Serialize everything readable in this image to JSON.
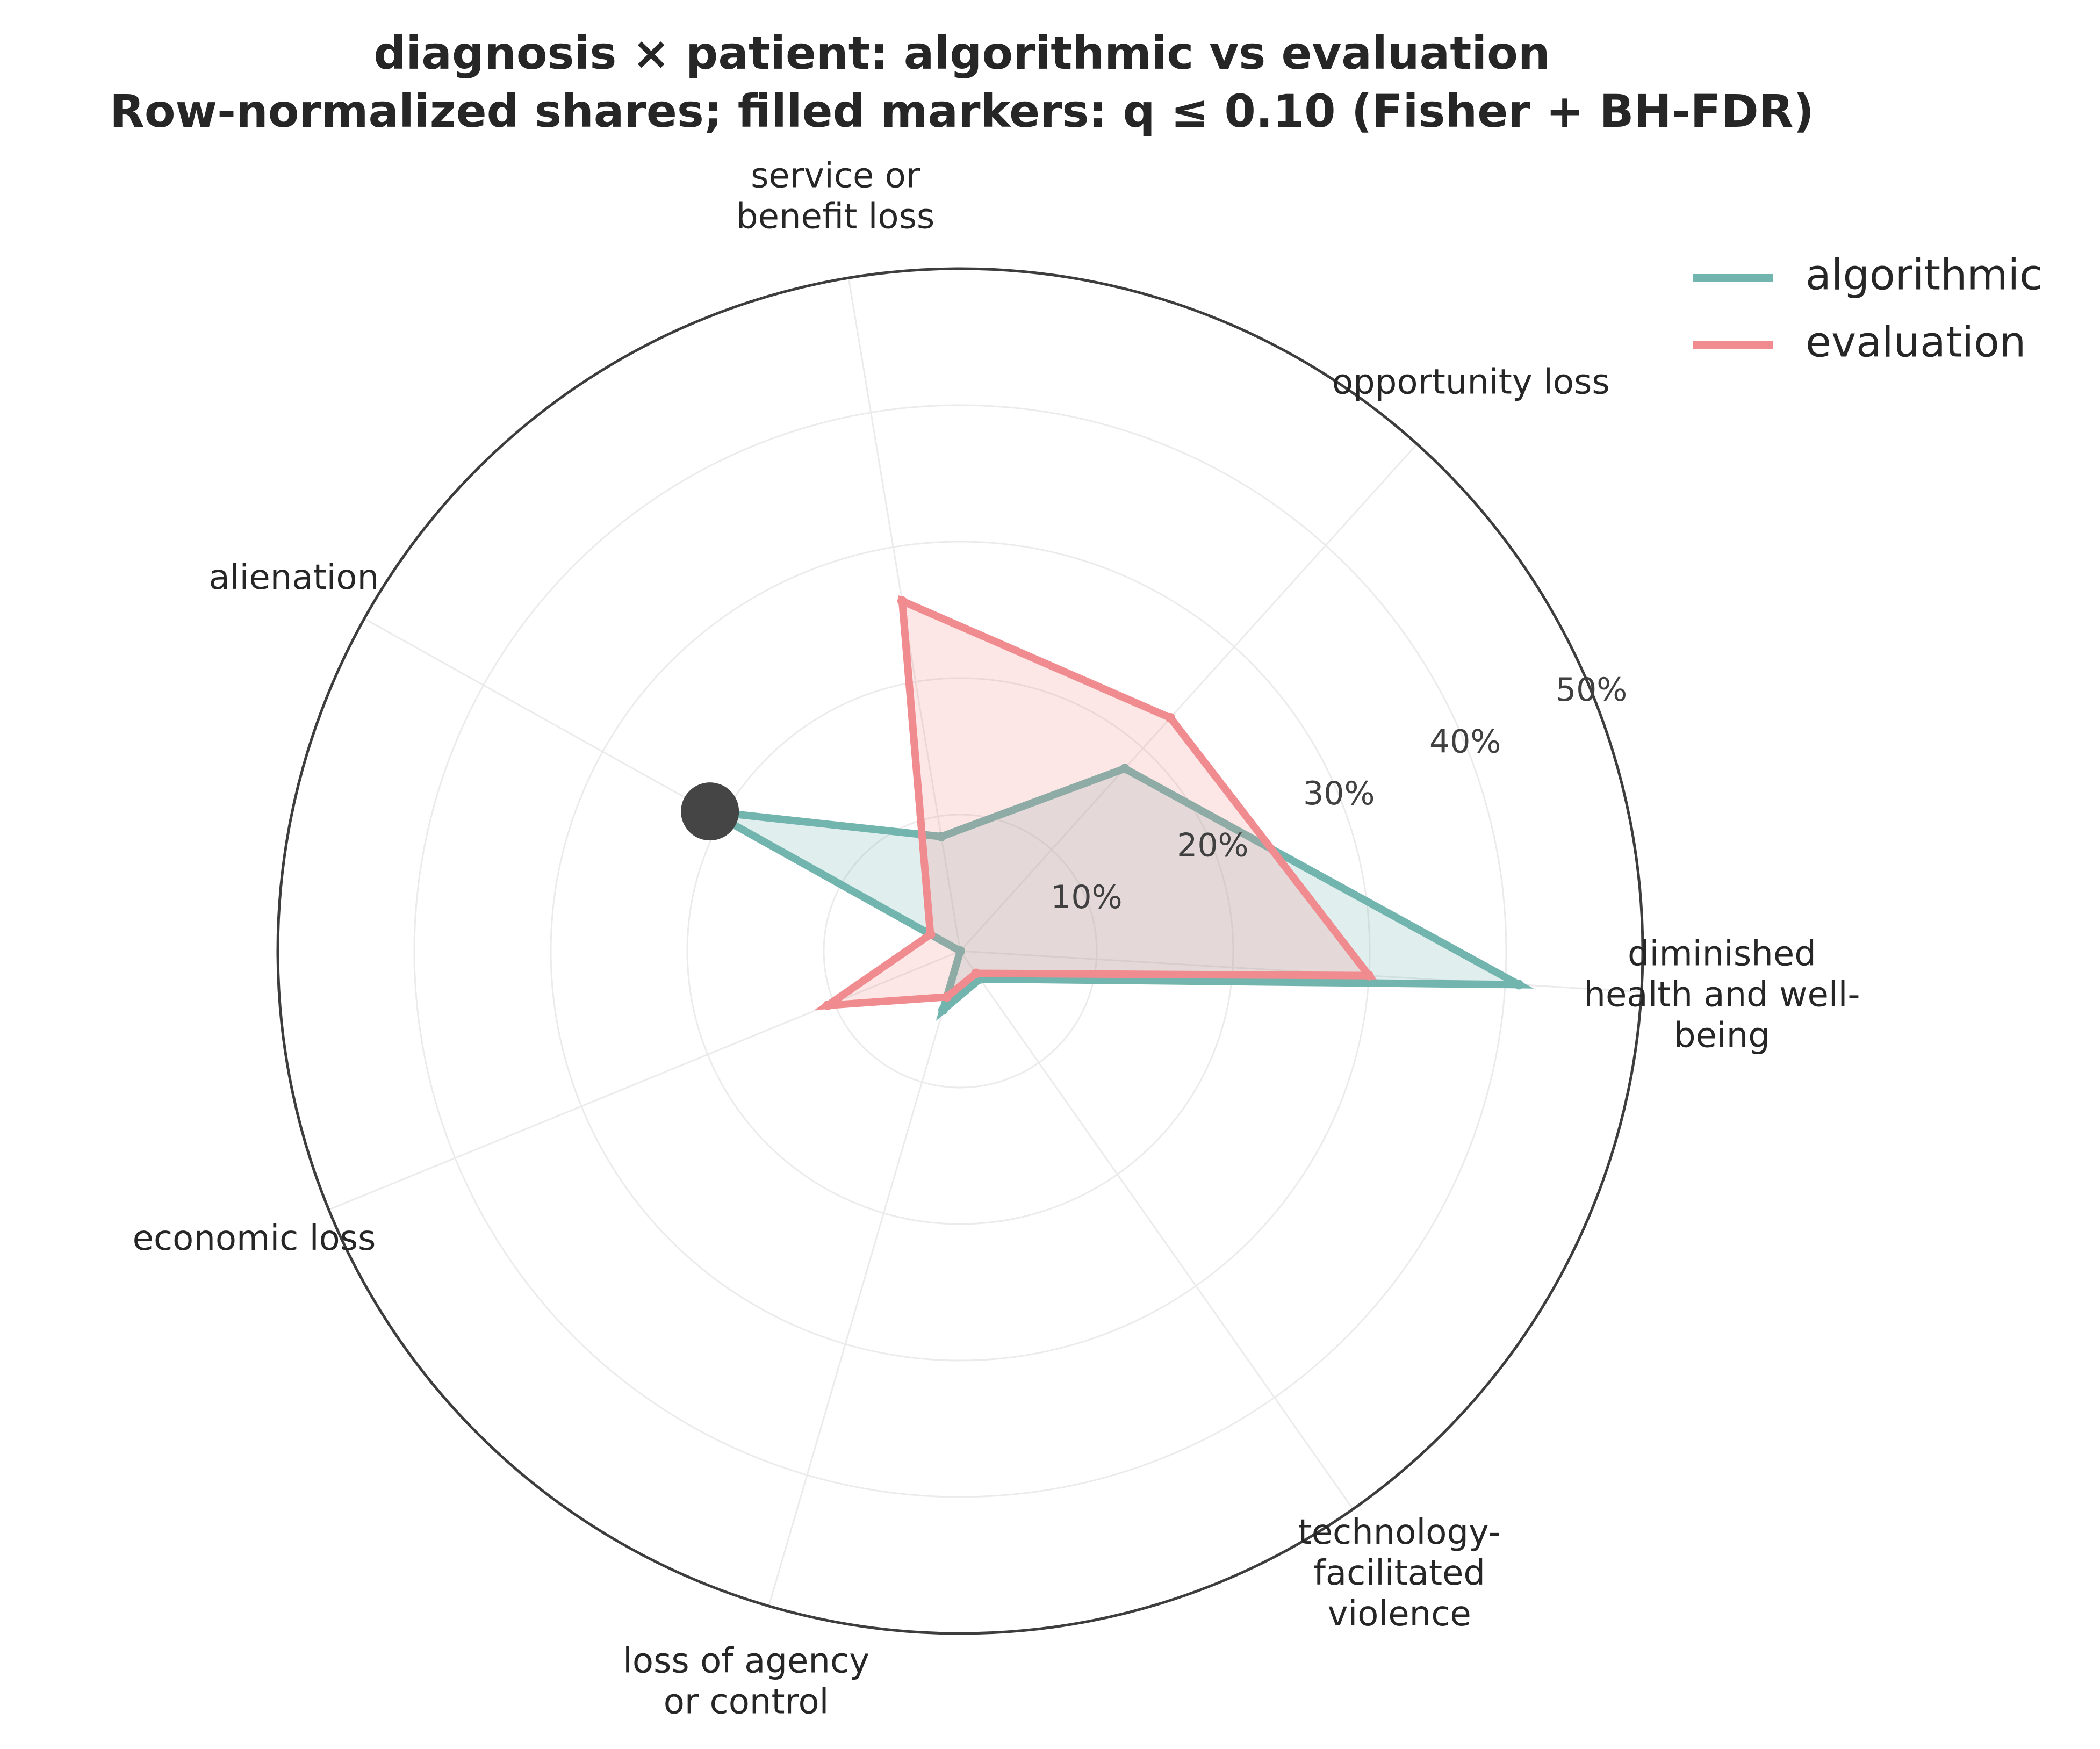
{
  "chart_data": {
    "type": "radar",
    "title_lines": [
      "diagnosis × patient: algorithmic vs evaluation",
      "Row-normalized shares; filled markers: q ≤ 0.10 (Fisher + BH-FDR)"
    ],
    "categories": [
      [
        "diminished",
        "health and well-",
        "being"
      ],
      [
        "opportunity loss"
      ],
      [
        "service or",
        "benefit loss"
      ],
      [
        "alienation"
      ],
      [
        "economic loss"
      ],
      [
        "loss of agency",
        "or control"
      ],
      [
        "technology-",
        "facilitated",
        "violence"
      ]
    ],
    "r_ticks": [
      10,
      20,
      30,
      40,
      50
    ],
    "r_tick_labels": [
      "10%",
      "20%",
      "30%",
      "40%",
      "50%"
    ],
    "rlim": [
      0,
      50
    ],
    "grid": true,
    "legend_position": "top-right",
    "series": [
      {
        "name": "algorithmic",
        "color": "#72b4ae",
        "values": [
          41,
          18,
          8.5,
          21,
          0,
          4.5,
          2.5
        ],
        "significant": [
          false,
          false,
          false,
          true,
          false,
          false,
          false
        ]
      },
      {
        "name": "evaluation",
        "color": "#f08c8f",
        "values": [
          30,
          23,
          26,
          2.5,
          10.5,
          3.5,
          2
        ],
        "significant": [
          false,
          false,
          false,
          false,
          false,
          false,
          false
        ]
      }
    ],
    "significant_marker_color": "#454545"
  }
}
